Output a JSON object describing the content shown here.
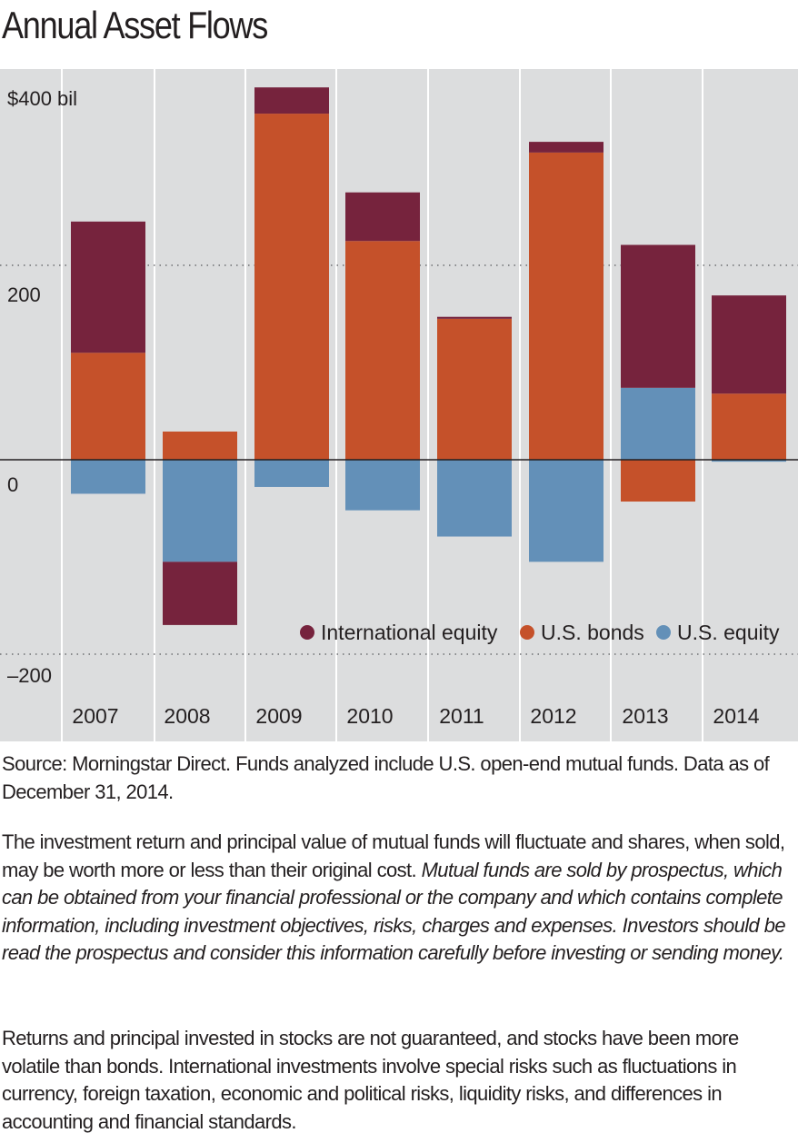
{
  "title": "Annual Asset Flows",
  "chart_data": {
    "type": "bar",
    "stacked": true,
    "categories": [
      "2007",
      "2008",
      "2009",
      "2010",
      "2011",
      "2012",
      "2013",
      "2014"
    ],
    "series": [
      {
        "name": "U.S. equity",
        "color": "#6390b8",
        "values": [
          -35,
          -105,
          -28,
          -52,
          -79,
          -105,
          74,
          -2
        ]
      },
      {
        "name": "U.S. bonds",
        "color": "#c5512a",
        "values": [
          110,
          29,
          356,
          225,
          145,
          316,
          -43,
          68
        ]
      },
      {
        "name": "International equity",
        "color": "#76233d",
        "values": [
          135,
          -65,
          27,
          50,
          2,
          11,
          147,
          101
        ]
      }
    ],
    "ylim": [
      -220,
      412
    ],
    "yticks": [
      400,
      200,
      0,
      -200
    ],
    "ytick_labels": [
      "$400 bil",
      "200",
      "0",
      "–200"
    ],
    "legend": {
      "position": "bottom-right",
      "items": [
        "International equity",
        "U.S. bonds",
        "U.S. equity"
      ]
    },
    "grid": true,
    "background": "#dcddde"
  },
  "source_note": "Source: Morningstar Direct. Funds analyzed include U.S. open-end mutual funds. Data as of December 31, 2014.",
  "disclaimer": {
    "normal": "The investment return and principal value of mutual funds will fluctuate and shares, when sold, may be worth more or less than their original cost. ",
    "italic": "Mutual funds are sold by prospectus, which can be obtained from your financial professional or the company and which contains complete information, including investment objectives, risks, charges and expenses.  Investors should be read the prospectus and consider this information carefully before investing or sending money."
  },
  "risk_note": "Returns and principal invested in stocks are not guaranteed, and stocks have been more volatile than bonds. International investments involve special risks such as fluctuations in currency, foreign taxation, economic and political risks, liquidity risks, and differences in accounting and financial standards."
}
